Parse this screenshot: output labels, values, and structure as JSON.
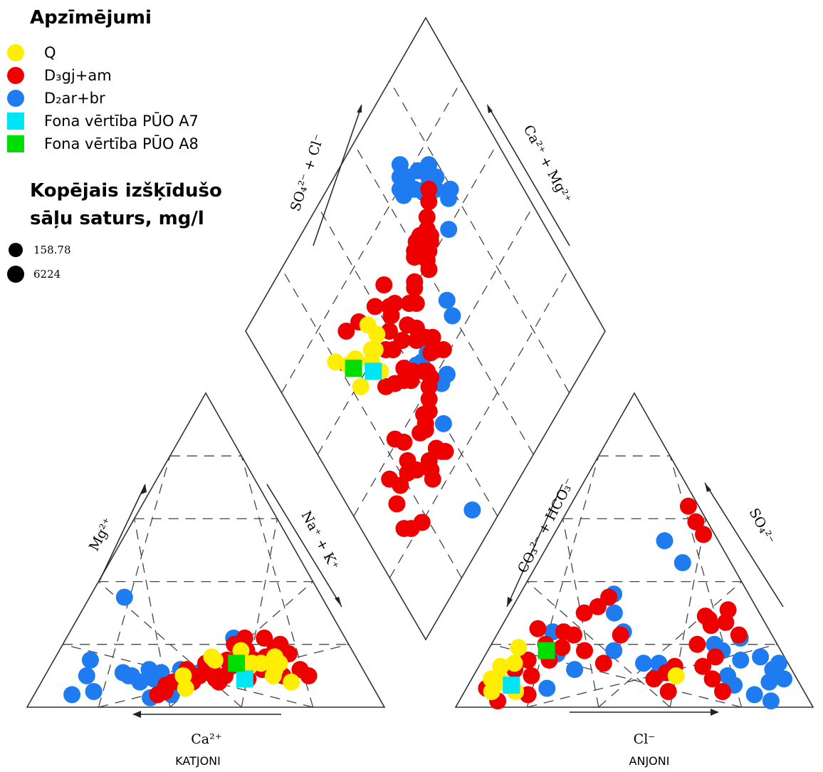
{
  "legend": {
    "title": "Apzīmējumi",
    "items": [
      {
        "label": "Q",
        "color": "#ffee00",
        "marker": "circle"
      },
      {
        "label": "D₃gj+am",
        "color": "#ee0000",
        "marker": "circle"
      },
      {
        "label": "D₂ar+br",
        "color": "#1e7cf0",
        "marker": "circle"
      },
      {
        "label": "Fona vērtība PŪO A7",
        "color": "#00e5f5",
        "marker": "square"
      },
      {
        "label": "Fona vērtība PŪO A8",
        "color": "#00dd00",
        "marker": "square"
      }
    ],
    "size_title_line1": "Kopējais izšķīdušo",
    "size_title_line2": "sāļu saturs, mg/l",
    "size_items": [
      "158.78",
      "6224"
    ]
  },
  "axes": {
    "diamond_left": "SO₄²⁻ + Cl⁻",
    "diamond_right": "Ca²⁺ + Mg²⁺",
    "cation_left": "Mg²⁺",
    "cation_right": "Na⁺ + K⁺",
    "cation_bottom": "Ca²⁺",
    "anion_left": "CO₃²⁻ + HCO₃⁻",
    "anion_right": "SO₄²⁻",
    "anion_bottom": "Cl⁻"
  },
  "triangle_names": {
    "cation": "KATJONI",
    "anion": "ANJONI"
  },
  "chart_data": {
    "type": "scatter",
    "subtype": "piper-diagram",
    "legend_placement": "top-left",
    "grid": true,
    "series": [
      {
        "name": "Q",
        "color": "#ffee00",
        "marker": "circle",
        "cation": [
          [
            76,
            8
          ],
          [
            74,
            14
          ],
          [
            73,
            16
          ],
          [
            72,
            12
          ],
          [
            71,
            10
          ],
          [
            68,
            14
          ],
          [
            65,
            14
          ],
          [
            62,
            18
          ],
          [
            64,
            13
          ],
          [
            53,
            15
          ],
          [
            52,
            16
          ],
          [
            43,
            10
          ],
          [
            44,
            6
          ]
        ],
        "anion": [
          [
            8,
            5
          ],
          [
            10,
            8
          ],
          [
            7,
            13
          ],
          [
            15,
            5
          ],
          [
            11,
            14
          ],
          [
            10,
            19
          ],
          [
            6,
            9
          ],
          [
            63,
            10
          ]
        ],
        "diamond": [
          [
            60,
            30
          ],
          [
            62,
            32
          ],
          [
            65,
            26
          ],
          [
            70,
            20
          ],
          [
            66,
            23
          ],
          [
            59,
            23
          ],
          [
            56,
            31
          ],
          [
            67,
            35
          ],
          [
            61,
            33
          ],
          [
            63,
            36
          ]
        ]
      },
      {
        "name": "D₃gj+am",
        "color": "#ee0000",
        "marker": "circle",
        "cation": [
          [
            82,
            10
          ],
          [
            80,
            12
          ],
          [
            78,
            17
          ],
          [
            76,
            20
          ],
          [
            74,
            19
          ],
          [
            74,
            10
          ],
          [
            71,
            22
          ],
          [
            70,
            16
          ],
          [
            68,
            12
          ],
          [
            66,
            15
          ],
          [
            64,
            18
          ],
          [
            64,
            22
          ],
          [
            61,
            16
          ],
          [
            62,
            12
          ],
          [
            60,
            20
          ],
          [
            58,
            13
          ],
          [
            56,
            10
          ],
          [
            54,
            8
          ],
          [
            52,
            12
          ],
          [
            50,
            14
          ],
          [
            48,
            10
          ],
          [
            46,
            8
          ],
          [
            44,
            12
          ],
          [
            40,
            8
          ],
          [
            38,
            5
          ],
          [
            36,
            4
          ],
          [
            63,
            9
          ],
          [
            57,
            15
          ],
          [
            53,
            9
          ],
          [
            38,
            7
          ]
        ],
        "anion": [
          [
            88,
            23
          ],
          [
            85,
            27
          ],
          [
            88,
            31
          ],
          [
            93,
            55
          ],
          [
            92,
            59
          ],
          [
            92,
            64
          ],
          [
            79,
            26
          ],
          [
            79,
            28
          ],
          [
            78,
            29
          ],
          [
            6,
            6
          ],
          [
            12,
            12
          ],
          [
            15,
            15
          ],
          [
            19,
            20
          ],
          [
            24,
            24
          ],
          [
            30,
            30
          ],
          [
            35,
            32
          ],
          [
            39,
            35
          ],
          [
            28,
            23
          ],
          [
            22,
            15
          ],
          [
            18,
            10
          ],
          [
            13,
            7
          ],
          [
            14,
            25
          ],
          [
            25,
            19
          ],
          [
            33,
            18
          ],
          [
            45,
            23
          ],
          [
            40,
            14
          ],
          [
            56,
            9
          ],
          [
            60,
            11
          ],
          [
            63,
            13
          ],
          [
            60,
            5
          ],
          [
            72,
            13
          ],
          [
            74,
            9
          ],
          [
            76,
            5
          ],
          [
            77,
            16
          ],
          [
            72,
            20
          ],
          [
            11,
            2
          ],
          [
            19,
            4
          ]
        ],
        "diamond": [
          [
            65,
            59
          ],
          [
            66,
            60
          ],
          [
            67,
            62
          ],
          [
            67,
            64
          ],
          [
            59,
            61
          ],
          [
            61,
            62
          ],
          [
            62,
            64
          ],
          [
            63,
            66
          ],
          [
            64,
            67
          ],
          [
            66,
            67
          ],
          [
            68,
            69
          ],
          [
            70,
            72
          ],
          [
            72,
            74
          ],
          [
            47,
            51
          ],
          [
            44,
            50
          ],
          [
            42,
            52
          ],
          [
            49,
            49
          ],
          [
            50,
            48
          ],
          [
            38,
            40
          ],
          [
            40,
            42
          ],
          [
            41,
            44
          ],
          [
            43,
            44
          ],
          [
            34,
            34
          ],
          [
            35,
            35
          ],
          [
            36,
            38
          ],
          [
            37,
            36
          ],
          [
            28,
            30
          ],
          [
            26,
            29
          ],
          [
            24,
            28
          ],
          [
            30,
            25
          ],
          [
            32,
            22
          ],
          [
            34,
            24
          ],
          [
            35,
            32
          ],
          [
            46,
            38
          ],
          [
            47,
            40
          ],
          [
            50,
            33
          ],
          [
            52,
            30
          ],
          [
            56,
            38
          ],
          [
            36,
            16
          ],
          [
            32,
            18
          ],
          [
            30,
            14
          ],
          [
            24,
            12
          ],
          [
            22,
            14
          ],
          [
            20,
            18
          ],
          [
            41,
            24
          ],
          [
            38,
            26
          ],
          [
            44,
            43
          ],
          [
            45,
            48
          ],
          [
            51,
            46
          ],
          [
            53,
            48
          ],
          [
            70,
            33
          ],
          [
            72,
            28
          ],
          [
            68,
            40
          ],
          [
            69,
            46
          ],
          [
            60,
            40
          ],
          [
            58,
            36
          ],
          [
            55,
            42
          ],
          [
            56,
            46
          ],
          [
            63,
            46
          ],
          [
            59,
            50
          ],
          [
            57,
            52
          ],
          [
            60,
            54
          ],
          [
            61,
            55
          ],
          [
            62,
            43
          ],
          [
            64,
            44
          ],
          [
            48,
            36
          ],
          [
            50,
            38
          ],
          [
            26,
            35
          ],
          [
            28,
            34
          ],
          [
            25,
            36
          ]
        ]
      },
      {
        "name": "D₂ar+br",
        "color": "#1e7cf0",
        "marker": "circle",
        "cation": [
          [
            24,
            11
          ],
          [
            30,
            8
          ],
          [
            26,
            10
          ],
          [
            36,
            11
          ],
          [
            38,
            7
          ],
          [
            40,
            4
          ],
          [
            42,
            12
          ],
          [
            34,
            9
          ],
          [
            27,
            10
          ],
          [
            32,
            12
          ],
          [
            48,
            11
          ],
          [
            43,
            9
          ],
          [
            60,
            22
          ],
          [
            34,
            3
          ],
          [
            15,
            35
          ],
          [
            12,
            15
          ],
          [
            13,
            10
          ],
          [
            11,
            4
          ],
          [
            17,
            5
          ]
        ],
        "anion": [
          [
            20,
            24
          ],
          [
            24,
            17
          ],
          [
            24,
            6
          ],
          [
            31,
            12
          ],
          [
            41,
            36
          ],
          [
            42,
            30
          ],
          [
            43,
            18
          ],
          [
            46,
            24
          ],
          [
            53,
            14
          ],
          [
            57,
            10
          ],
          [
            58,
            14
          ],
          [
            68,
            53
          ],
          [
            75,
            46
          ],
          [
            80,
            18
          ],
          [
            88,
            22
          ],
          [
            92,
            16
          ],
          [
            96,
            9
          ],
          [
            79,
            10
          ],
          [
            80,
            7
          ],
          [
            85,
            4
          ],
          [
            89,
            2
          ],
          [
            94,
            12
          ],
          [
            97,
            14
          ],
          [
            91,
            8
          ],
          [
            85,
            15
          ],
          [
            78,
            20
          ]
        ],
        "diamond": [
          [
            70,
            76
          ],
          [
            72,
            78
          ],
          [
            74,
            76
          ],
          [
            76,
            78
          ],
          [
            78,
            74
          ],
          [
            73,
            72
          ],
          [
            76,
            70
          ],
          [
            80,
            70
          ],
          [
            82,
            68
          ],
          [
            84,
            70
          ],
          [
            78,
            66
          ],
          [
            80,
            66
          ],
          [
            66,
            80
          ],
          [
            65,
            78
          ],
          [
            46,
            44
          ],
          [
            46,
            47
          ],
          [
            47,
            42
          ],
          [
            30,
            40
          ],
          [
            37,
            46
          ],
          [
            37,
            49
          ],
          [
            8,
            34
          ],
          [
            45,
            60
          ],
          [
            49,
            61
          ],
          [
            60,
            73
          ],
          [
            73,
            73
          ]
        ]
      },
      {
        "name": "Fona vērtība PŪO A7",
        "color": "#00e5f5",
        "marker": "square",
        "cation": [
          [
            62,
            9
          ]
        ],
        "anion": [
          [
            13,
            7
          ]
        ],
        "diamond": [
          [
            58,
            29
          ]
        ]
      },
      {
        "name": "Fona vērtība PŪO A8",
        "color": "#00dd00",
        "marker": "square",
        "cation": [
          [
            60,
            14
          ]
        ],
        "anion": [
          [
            20,
            18
          ]
        ],
        "diamond": [
          [
            64,
            24
          ]
        ]
      }
    ]
  }
}
